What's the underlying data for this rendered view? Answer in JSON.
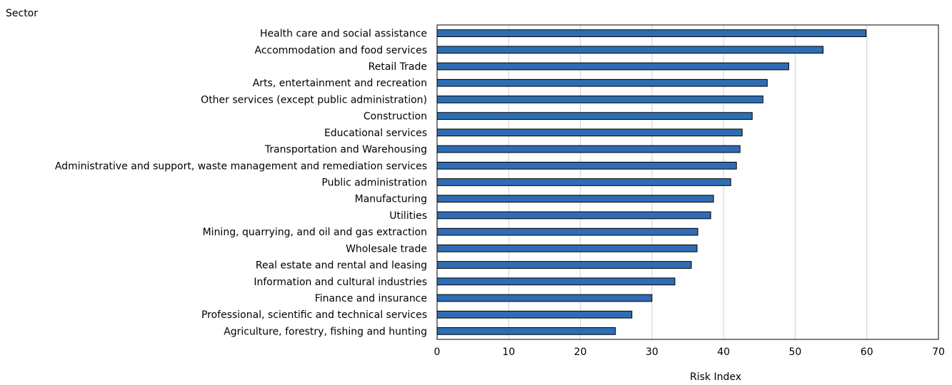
{
  "chart_data": {
    "type": "bar",
    "orientation": "horizontal",
    "title": "",
    "ylabel": "Sector",
    "xlabel": "Risk Index",
    "xlim": [
      0,
      70
    ],
    "xticks": [
      0,
      10,
      20,
      30,
      40,
      50,
      60,
      70
    ],
    "grid": "vertical",
    "legend": "none",
    "bar_color": "#2e6db4",
    "bar_edge_color": "#000000",
    "categories": [
      "Health care and social assistance",
      "Accommodation and food services",
      "Retail Trade",
      "Arts, entertainment and recreation",
      "Other services (except public administration)",
      "Construction",
      "Educational services",
      "Transportation and Warehousing",
      "Administrative and support, waste management and remediation services",
      "Public administration",
      "Manufacturing",
      "Utilities",
      "Mining, quarrying, and oil and gas extraction",
      "Wholesale trade",
      "Real estate and rental and leasing",
      "Information and cultural industries",
      "Finance and insurance",
      "Professional, scientific and technical services",
      "Agriculture, forestry, fishing and hunting"
    ],
    "values": [
      59.9,
      53.9,
      49.1,
      46.1,
      45.5,
      44.0,
      42.6,
      42.3,
      41.8,
      41.0,
      38.6,
      38.2,
      36.4,
      36.3,
      35.5,
      33.2,
      30.0,
      27.2,
      24.9
    ]
  }
}
